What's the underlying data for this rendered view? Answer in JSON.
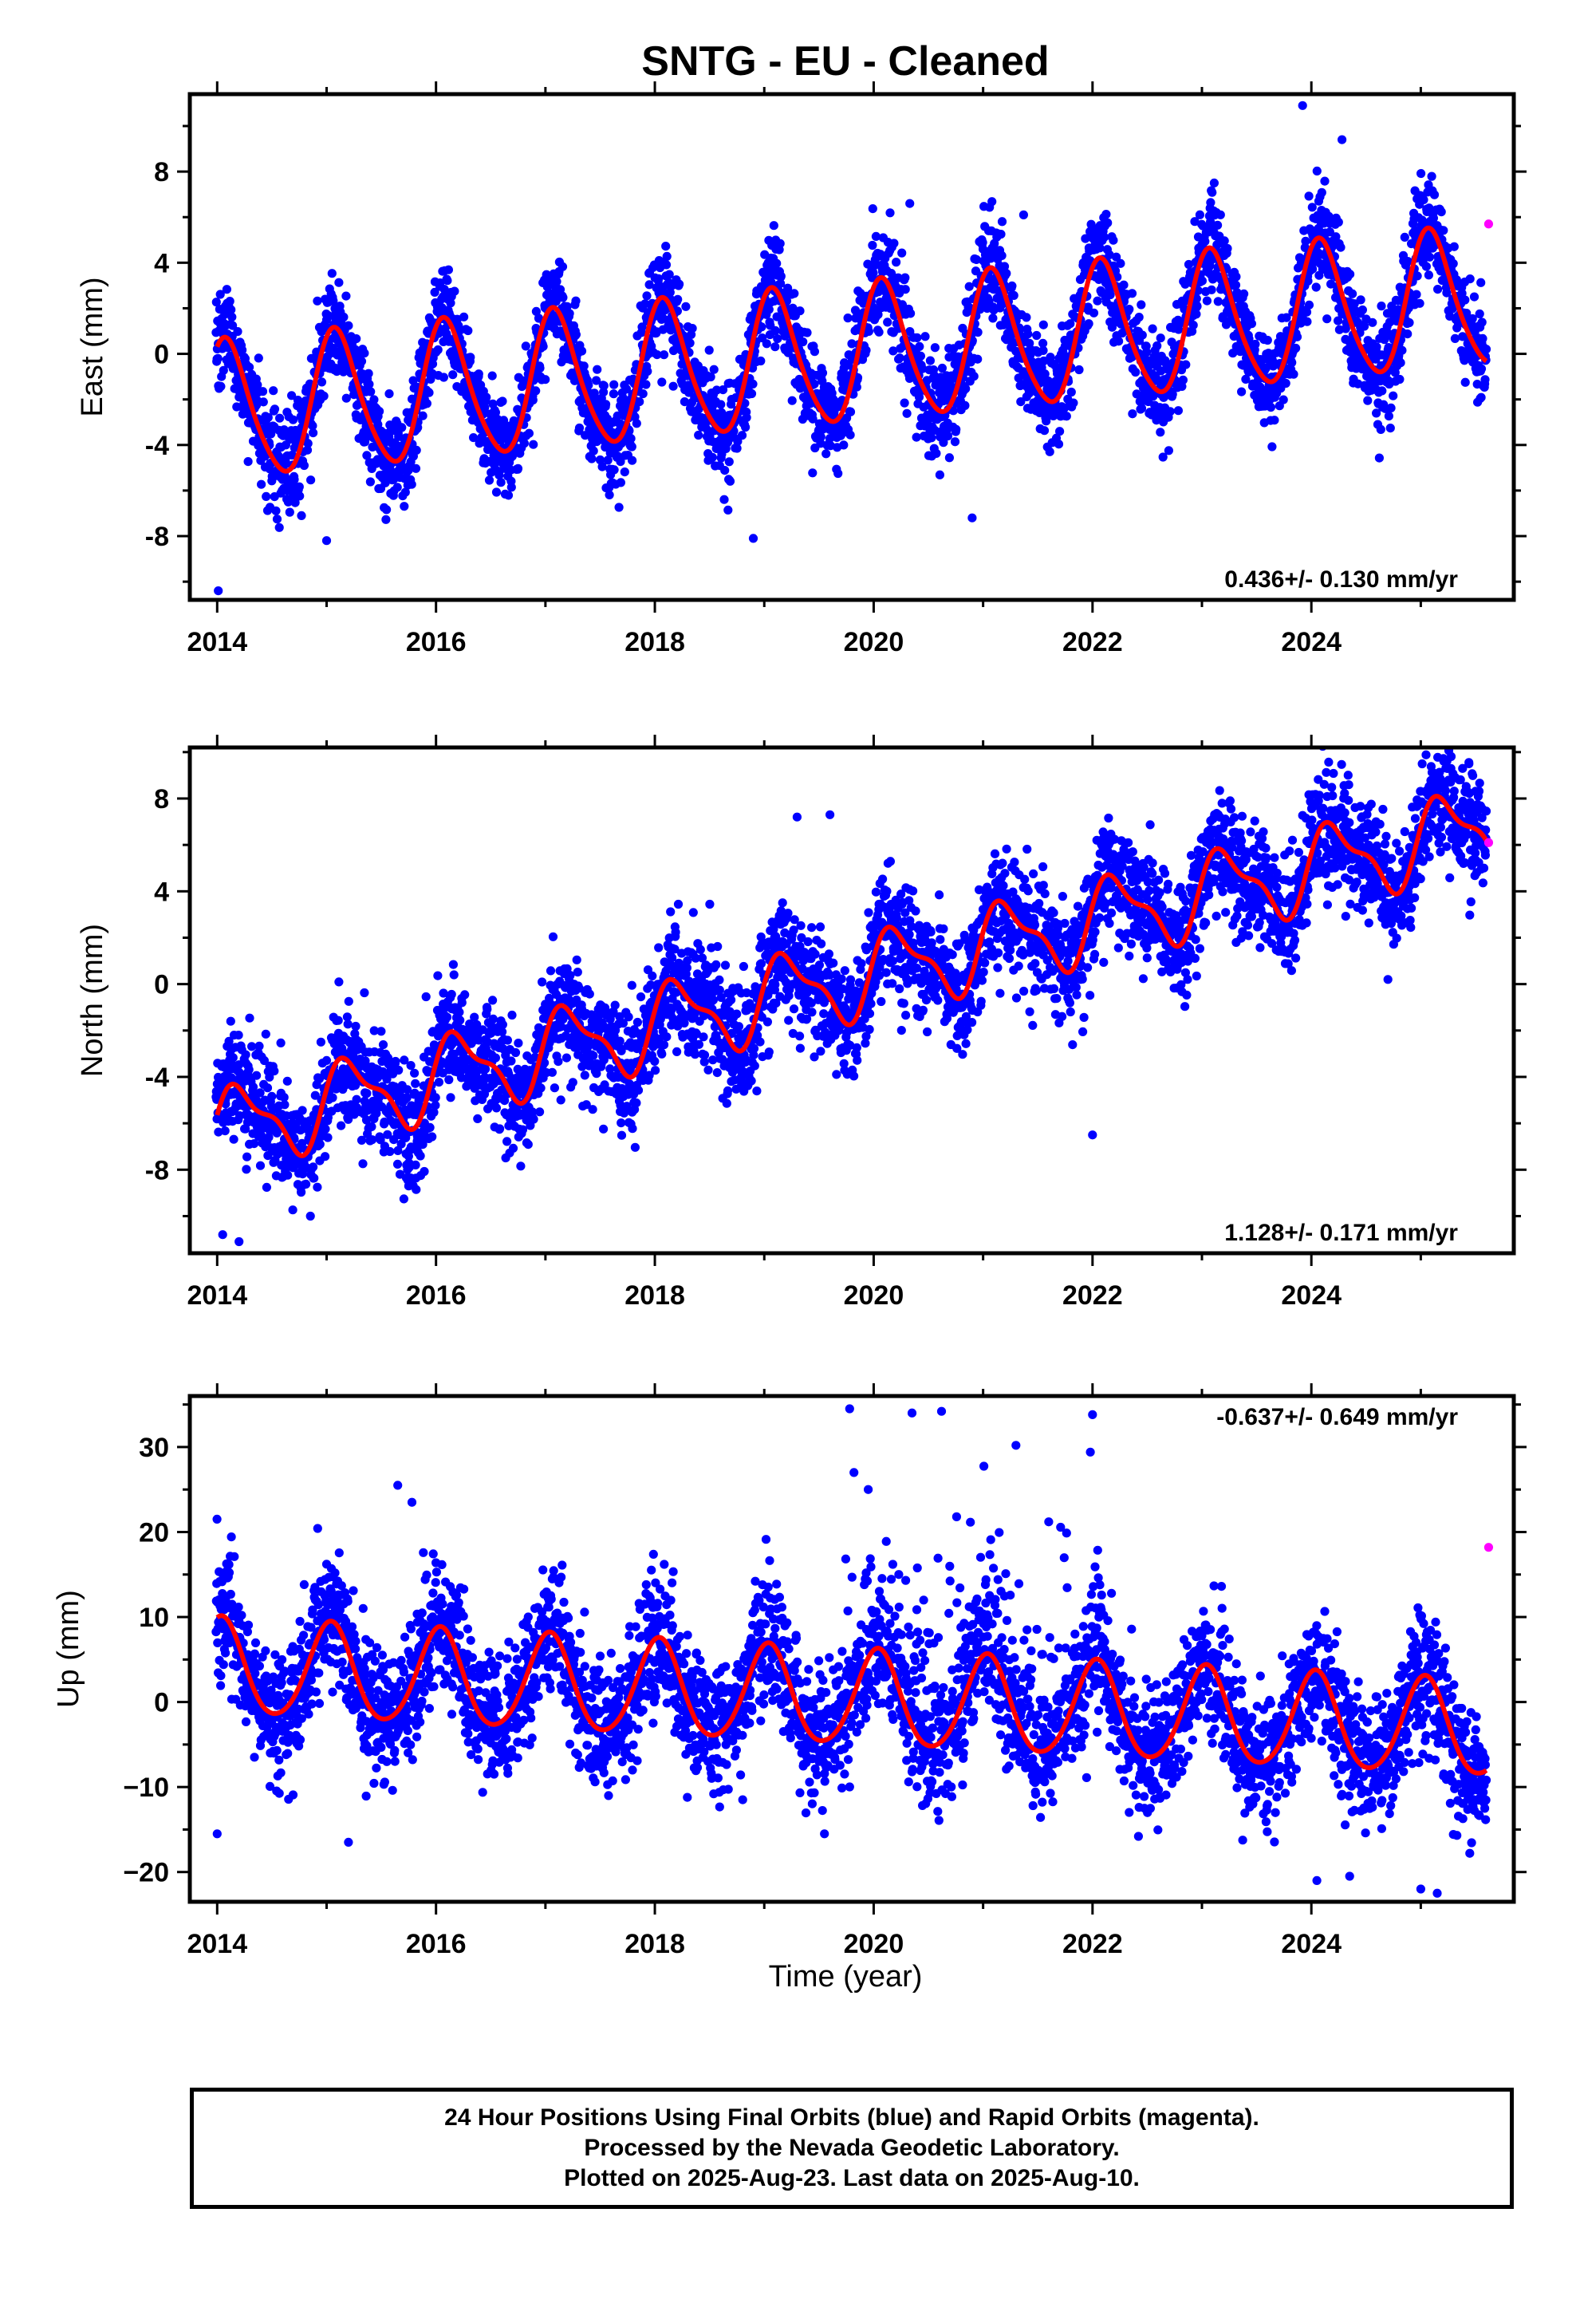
{
  "title": "SNTG  - EU - Cleaned",
  "xlabel": "Time (year)",
  "caption": [
    "24 Hour Positions Using Final Orbits (blue) and Rapid Orbits (magenta).",
    "Processed by the Nevada Geodetic Laboratory.",
    "Plotted on 2025-Aug-23. Last data on 2025-Aug-10."
  ],
  "colors": {
    "final": "#0000ff",
    "rapid": "#ff00ff",
    "model": "#ff0000",
    "axis": "#000000"
  },
  "chart_data": [
    {
      "type": "scatter",
      "panel": "east",
      "ylabel": "East (mm)",
      "rate_text": "0.436+/- 0.130 mm/yr",
      "rate_position": "bottom-right",
      "xlim": [
        2013.75,
        2025.85
      ],
      "ylim": [
        -10.8,
        11.4
      ],
      "xticks": [
        2014,
        2016,
        2018,
        2020,
        2022,
        2024
      ],
      "xtick_labels": [
        "2014",
        "2016",
        "2018",
        "2020",
        "2022",
        "2024"
      ],
      "yticks": [
        -8,
        -4,
        0,
        4,
        8
      ],
      "ytick_labels": [
        "-8",
        "-4",
        "0",
        "4",
        "8"
      ],
      "series": [
        {
          "role": "final-orbits",
          "start": 2013.99,
          "end": 2025.6,
          "trend": [
            -2.6,
            0.436
          ],
          "annual": [
            3.0,
            1.0
          ],
          "semiannual": [
            0.4,
            1.3
          ],
          "scatter_sd": 1.1,
          "outliers": [
            [
              2014.01,
              -10.4
            ],
            [
              2023.92,
              10.9
            ],
            [
              2024.28,
              9.4
            ],
            [
              2020.33,
              6.6
            ],
            [
              2018.9,
              -8.1
            ],
            [
              2015.0,
              -8.2
            ],
            [
              2021.37,
              6.1
            ],
            [
              2020.9,
              -7.2
            ]
          ]
        },
        {
          "role": "rapid-orbits",
          "points": [
            [
              2025.62,
              5.7
            ]
          ]
        },
        {
          "role": "model",
          "start": 2014.0,
          "end": 2025.6
        }
      ]
    },
    {
      "type": "scatter",
      "panel": "north",
      "ylabel": "North (mm)",
      "rate_text": "1.128+/- 0.171 mm/yr",
      "rate_position": "bottom-right",
      "xlim": [
        2013.75,
        2025.85
      ],
      "ylim": [
        -11.6,
        10.2
      ],
      "xticks": [
        2014,
        2016,
        2018,
        2020,
        2022,
        2024
      ],
      "xtick_labels": [
        "2014",
        "2016",
        "2018",
        "2020",
        "2022",
        "2024"
      ],
      "yticks": [
        -8,
        -4,
        0,
        4,
        8
      ],
      "ytick_labels": [
        "-8",
        "-4",
        "0",
        "4",
        "8"
      ],
      "series": [
        {
          "role": "final-orbits",
          "start": 2013.99,
          "end": 2025.6,
          "trend": [
            -6.3,
            1.128
          ],
          "annual": [
            1.6,
            0.2
          ],
          "semiannual": [
            0.6,
            0.6
          ],
          "scatter_sd": 1.25,
          "outliers": [
            [
              2014.05,
              -10.8
            ],
            [
              2014.2,
              -11.1
            ],
            [
              2019.3,
              7.2
            ],
            [
              2019.6,
              7.3
            ],
            [
              2022.0,
              -6.5
            ],
            [
              2025.44,
              9.5
            ],
            [
              2015.75,
              -8.7
            ],
            [
              2024.7,
              0.2
            ]
          ]
        },
        {
          "role": "rapid-orbits",
          "points": [
            [
              2025.62,
              6.1
            ]
          ]
        },
        {
          "role": "model",
          "start": 2014.0,
          "end": 2025.6
        }
      ]
    },
    {
      "type": "scatter",
      "panel": "up",
      "ylabel": "Up (mm)",
      "rate_text": "-0.637+/- 0.649 mm/yr",
      "rate_position": "top-right",
      "xlim": [
        2013.75,
        2025.85
      ],
      "ylim": [
        -23.5,
        36
      ],
      "xticks": [
        2014,
        2016,
        2018,
        2020,
        2022,
        2024
      ],
      "xtick_labels": [
        "2014",
        "2016",
        "2018",
        "2020",
        "2022",
        "2024"
      ],
      "yticks": [
        -20,
        -10,
        0,
        10,
        20,
        30
      ],
      "ytick_labels": [
        "−20",
        "−10",
        "0",
        "10",
        "20",
        "30"
      ],
      "series": [
        {
          "role": "final-orbits",
          "start": 2013.99,
          "end": 2025.6,
          "trend": [
            4.0,
            -0.637
          ],
          "annual": [
            5.6,
            1.35
          ],
          "semiannual": [
            0.6,
            0.9
          ],
          "scatter_sd": 3.8,
          "outliers": [
            [
              2019.78,
              34.5
            ],
            [
              2020.35,
              34.0
            ],
            [
              2020.62,
              34.2
            ],
            [
              2021.3,
              30.2
            ],
            [
              2022.0,
              33.8
            ],
            [
              2021.98,
              29.4
            ],
            [
              2015.65,
              25.5
            ],
            [
              2015.78,
              23.5
            ],
            [
              2019.82,
              27.0
            ],
            [
              2019.95,
              25.0
            ],
            [
              2021.6,
              21.2
            ],
            [
              2024.05,
              -21.0
            ],
            [
              2024.35,
              -20.5
            ],
            [
              2025.0,
              -22.0
            ],
            [
              2025.15,
              -22.5
            ],
            [
              2015.2,
              -16.5
            ],
            [
              2019.55,
              -15.5
            ],
            [
              2014.0,
              -15.5
            ]
          ]
        },
        {
          "role": "rapid-orbits",
          "points": [
            [
              2025.62,
              18.2
            ]
          ]
        },
        {
          "role": "model",
          "start": 2014.0,
          "end": 2025.6
        }
      ]
    }
  ]
}
